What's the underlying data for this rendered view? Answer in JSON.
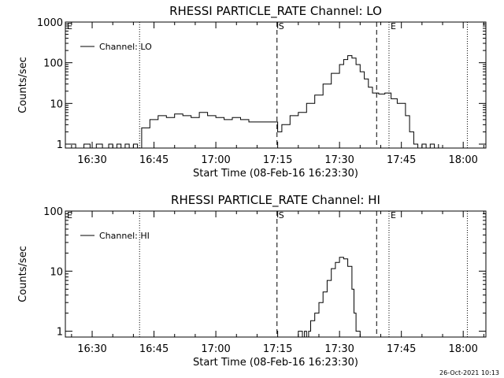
{
  "footer_timestamp": "26-Oct-2021 10:13",
  "chart_data": [
    {
      "type": "line",
      "title": "RHESSI PARTICLE_RATE Channel: LO",
      "xlabel": "Start Time (08-Feb-16 16:23:30)",
      "ylabel": "Counts/sec",
      "yscale": "log",
      "xlim": [
        "16:23:30",
        "18:05:30"
      ],
      "ylim": [
        0.8,
        1000
      ],
      "x_ticks": [
        "16:30",
        "16:45",
        "17:00",
        "17:15",
        "17:30",
        "17:45",
        "18:00"
      ],
      "y_ticks": [
        "1",
        "10",
        "100",
        "1000"
      ],
      "legend": "top-left",
      "markers": [
        {
          "label": "E",
          "time": "16:23:30",
          "style": "dotted"
        },
        {
          "time": "16:41:30",
          "style": "dotted"
        },
        {
          "label": "S",
          "time": "17:14:50",
          "style": "dashed"
        },
        {
          "time": "17:39:00",
          "style": "dashed"
        },
        {
          "label": "E",
          "time": "17:42:00",
          "style": "dotted"
        },
        {
          "time": "17:61:00",
          "style": "dotted"
        }
      ],
      "series": [
        {
          "name": "Channel: LO",
          "x": [
            "16:24:30",
            "16:26:00",
            "16:28:00",
            "16:29:30",
            "16:31:00",
            "16:32:30",
            "16:34:00",
            "16:35:00",
            "16:36:00",
            "16:37:00",
            "16:38:00",
            "16:39:00",
            "16:40:00",
            "16:41:00",
            "16:42:00",
            "16:44:00",
            "16:46:00",
            "16:48:00",
            "16:50:00",
            "16:52:00",
            "16:54:00",
            "16:56:00",
            "16:58:00",
            "17:00:00",
            "17:02:00",
            "17:04:00",
            "17:06:00",
            "17:08:00",
            "17:10:00",
            "17:12:00",
            "17:14:00",
            "17:15:00",
            "17:16:00",
            "17:18:00",
            "17:20:00",
            "17:22:00",
            "17:24:00",
            "17:26:00",
            "17:28:00",
            "17:30:00",
            "17:31:00",
            "17:32:00",
            "17:33:00",
            "17:34:00",
            "17:35:00",
            "17:36:00",
            "17:37:00",
            "17:38:00",
            "17:39:30",
            "17:41:00",
            "17:42:30",
            "17:44:00",
            "17:46:00",
            "17:47:00",
            "17:48:00",
            "17:49:00",
            "17:50:00",
            "17:51:00",
            "17:52:00",
            "17:53:00",
            "17:54:00"
          ],
          "values": [
            1,
            0.8,
            1,
            0.8,
            1,
            0.8,
            1,
            0.8,
            1,
            0.8,
            1,
            0.8,
            1,
            0.8,
            2.5,
            4,
            5,
            4.5,
            5.5,
            5,
            4.5,
            6,
            5,
            4.5,
            4,
            4.5,
            4,
            3.5,
            3.5,
            3.5,
            3.5,
            2,
            3,
            5,
            6,
            10,
            16,
            30,
            55,
            90,
            120,
            150,
            130,
            90,
            60,
            40,
            25,
            18,
            17,
            18,
            13,
            10,
            5,
            2,
            1,
            0.8,
            1,
            0.8,
            1,
            0.8,
            1
          ]
        }
      ]
    },
    {
      "type": "line",
      "title": "RHESSI PARTICLE_RATE Channel: HI",
      "xlabel": "Start Time (08-Feb-16 16:23:30)",
      "ylabel": "Counts/sec",
      "yscale": "log",
      "xlim": [
        "16:23:30",
        "18:05:30"
      ],
      "ylim": [
        0.8,
        100
      ],
      "x_ticks": [
        "16:30",
        "16:45",
        "17:00",
        "17:15",
        "17:30",
        "17:45",
        "18:00"
      ],
      "y_ticks": [
        "1",
        "10",
        "100"
      ],
      "legend": "top-left",
      "markers": [
        {
          "label": "E",
          "time": "16:23:30",
          "style": "dotted"
        },
        {
          "time": "16:41:30",
          "style": "dotted"
        },
        {
          "label": "S",
          "time": "17:14:50",
          "style": "dashed"
        },
        {
          "time": "17:39:00",
          "style": "dashed"
        },
        {
          "label": "E",
          "time": "17:42:00",
          "style": "dotted"
        },
        {
          "time": "17:61:00",
          "style": "dotted"
        }
      ],
      "series": [
        {
          "name": "Channel: HI",
          "x": [
            "17:19:00",
            "17:20:00",
            "17:21:00",
            "17:21:30",
            "17:22:00",
            "17:22:30",
            "17:23:00",
            "17:24:00",
            "17:25:00",
            "17:26:00",
            "17:27:00",
            "17:28:00",
            "17:29:00",
            "17:30:00",
            "17:31:00",
            "17:32:00",
            "17:33:00",
            "17:33:30",
            "17:34:00",
            "17:35:00"
          ],
          "values": [
            0.8,
            1,
            0.8,
            1,
            0.8,
            1,
            1.5,
            2,
            3,
            4.5,
            7,
            11,
            14,
            17,
            16,
            12,
            5,
            2,
            1,
            0.8
          ]
        }
      ]
    }
  ]
}
